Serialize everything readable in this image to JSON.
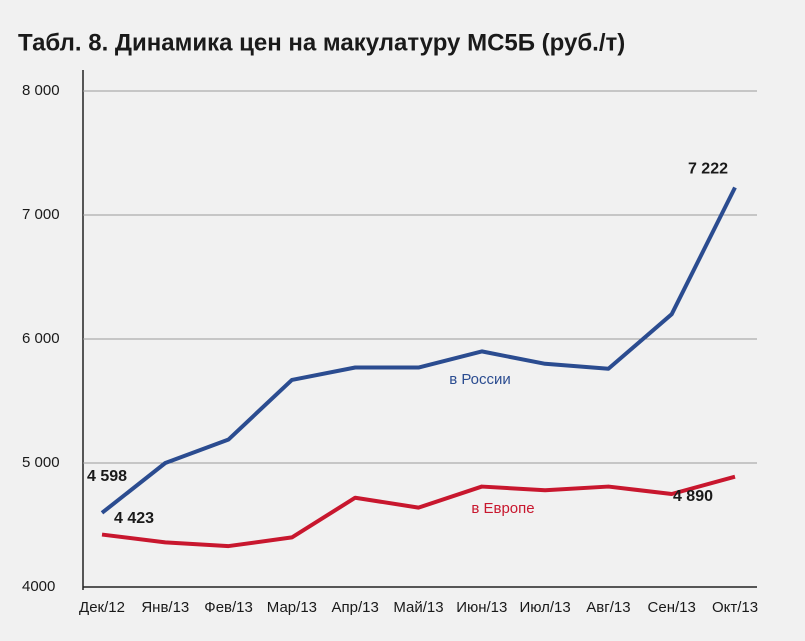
{
  "chart_data": {
    "type": "line",
    "title": "Табл. 8. Динамика цен на макулатуру МС5Б (руб./т)",
    "categories": [
      "Дек/12",
      "Янв/13",
      "Фев/13",
      "Мар/13",
      "Апр/13",
      "Май/13",
      "Июн/13",
      "Июл/13",
      "Авг/13",
      "Сен/13",
      "Окт/13"
    ],
    "series": [
      {
        "name": "в России",
        "color": "#2b4c90",
        "values": [
          4598,
          5000,
          5190,
          5670,
          5770,
          5770,
          5900,
          5800,
          5760,
          6200,
          7222
        ],
        "value_labels": [
          "4 598",
          null,
          null,
          null,
          null,
          null,
          null,
          null,
          null,
          null,
          "7 222"
        ]
      },
      {
        "name": "в Европе",
        "color": "#c8172e",
        "values": [
          4423,
          4360,
          4330,
          4400,
          4720,
          4640,
          4810,
          4780,
          4810,
          4750,
          4890
        ],
        "value_labels": [
          "4 423",
          null,
          null,
          null,
          null,
          null,
          null,
          null,
          null,
          null,
          "4 890"
        ]
      }
    ],
    "ylim": [
      4000,
      8000
    ],
    "yticks": [
      4000,
      {
        "value": 5000,
        "label": "5 000"
      },
      {
        "value": 6000,
        "label": "6 000"
      },
      {
        "value": 7000,
        "label": "7 000"
      },
      {
        "value": 8000,
        "label": "8 000"
      }
    ],
    "grid": true
  }
}
